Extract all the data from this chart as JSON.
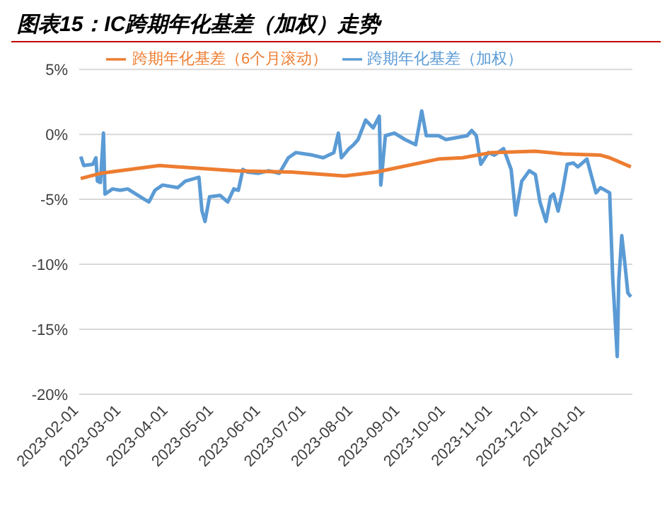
{
  "chart_data": {
    "type": "line",
    "title": "图表15：IC跨期年化基差（加权）走势",
    "xlim": [
      "2023-02-01",
      "2024-02-01"
    ],
    "xticks": [
      {
        "value": "2023-02-01",
        "label": "2023-02-01"
      },
      {
        "value": "2023-03-01",
        "label": "2023-03-01"
      },
      {
        "value": "2023-04-01",
        "label": "2023-04-01"
      },
      {
        "value": "2023-05-01",
        "label": "2023-05-01"
      },
      {
        "value": "2023-06-01",
        "label": "2023-06-01"
      },
      {
        "value": "2023-07-01",
        "label": "2023-07-01"
      },
      {
        "value": "2023-08-01",
        "label": "2023-08-01"
      },
      {
        "value": "2023-09-01",
        "label": "2023-09-01"
      },
      {
        "value": "2023-10-01",
        "label": "2023-10-01"
      },
      {
        "value": "2023-11-01",
        "label": "2023-11-01"
      },
      {
        "value": "2023-12-01",
        "label": "2023-12-01"
      },
      {
        "value": "2024-01-01",
        "label": "2024-01-01"
      }
    ],
    "ylim": [
      -20,
      5
    ],
    "yticks": [
      {
        "value": -20,
        "label": "-20%"
      },
      {
        "value": -15,
        "label": "-15%"
      },
      {
        "value": -10,
        "label": "-10%"
      },
      {
        "value": -5,
        "label": "-5%"
      },
      {
        "value": 0,
        "label": "0%"
      },
      {
        "value": 5,
        "label": "5%"
      }
    ],
    "grid": "y",
    "legend": "top",
    "marker": "none",
    "line_style": "solid",
    "series": [
      {
        "name": "跨期年化基差（加权）",
        "color": "#5b9bd5",
        "x": [
          "2023-02-02",
          "2023-02-04",
          "2023-02-10",
          "2023-02-12",
          "2023-02-13",
          "2023-02-15",
          "2023-02-17",
          "2023-02-18",
          "2023-02-23",
          "2023-02-28",
          "2023-03-05",
          "2023-03-16",
          "2023-03-19",
          "2023-03-23",
          "2023-03-28",
          "2023-04-07",
          "2023-04-12",
          "2023-04-21",
          "2023-04-23",
          "2023-04-25",
          "2023-04-28",
          "2023-05-05",
          "2023-05-10",
          "2023-05-14",
          "2023-05-17",
          "2023-05-20",
          "2023-05-23",
          "2023-05-30",
          "2023-06-06",
          "2023-06-13",
          "2023-06-19",
          "2023-06-24",
          "2023-07-05",
          "2023-07-12",
          "2023-07-19",
          "2023-07-22",
          "2023-07-24",
          "2023-07-29",
          "2023-08-01",
          "2023-08-04",
          "2023-08-09",
          "2023-08-14",
          "2023-08-18",
          "2023-08-19",
          "2023-08-22",
          "2023-08-28",
          "2023-09-04",
          "2023-09-11",
          "2023-09-15",
          "2023-09-18",
          "2023-09-26",
          "2023-10-01",
          "2023-10-15",
          "2023-10-18",
          "2023-10-21",
          "2023-10-24",
          "2023-10-29",
          "2023-11-02",
          "2023-11-08",
          "2023-11-13",
          "2023-11-16",
          "2023-11-20",
          "2023-11-25",
          "2023-11-29",
          "2023-12-02",
          "2023-12-06",
          "2023-12-09",
          "2023-12-11",
          "2023-12-14",
          "2023-12-17",
          "2023-12-20",
          "2023-12-24",
          "2023-12-27",
          "2024-01-02",
          "2024-01-08",
          "2024-01-11",
          "2024-01-17",
          "2024-01-19",
          "2024-01-22",
          "2024-01-23",
          "2024-01-25",
          "2024-01-27",
          "2024-01-29",
          "2024-01-31"
        ],
        "values": [
          -1.7,
          -2.4,
          -2.3,
          -1.8,
          -3.6,
          -3.7,
          0.1,
          -4.6,
          -4.2,
          -4.3,
          -4.2,
          -5.0,
          -5.2,
          -4.3,
          -3.9,
          -4.1,
          -3.6,
          -3.3,
          -5.9,
          -6.7,
          -4.8,
          -4.7,
          -5.2,
          -4.2,
          -4.3,
          -2.7,
          -2.9,
          -3.0,
          -2.8,
          -3.0,
          -1.8,
          -1.4,
          -1.6,
          -1.8,
          -1.4,
          0.1,
          -1.8,
          -1.1,
          -0.8,
          -0.4,
          1.1,
          0.5,
          1.4,
          -3.9,
          -0.1,
          0.1,
          -0.4,
          -0.8,
          1.8,
          -0.1,
          -0.1,
          -0.4,
          -0.1,
          0.3,
          -0.1,
          -2.3,
          -1.4,
          -1.6,
          -1.1,
          -2.7,
          -6.2,
          -3.6,
          -2.8,
          -3.1,
          -5.2,
          -6.7,
          -4.8,
          -4.6,
          -5.9,
          -4.3,
          -2.3,
          -2.2,
          -2.5,
          -1.9,
          -4.5,
          -4.1,
          -4.5,
          -11.0,
          -17.1,
          -11.3,
          -7.8,
          -9.9,
          -12.2,
          -12.5
        ]
      },
      {
        "name": "跨期年化基差（6个月滚动）",
        "color": "#ed7d31",
        "x": [
          "2023-02-02",
          "2023-02-15",
          "2023-03-26",
          "2023-05-15",
          "2023-06-21",
          "2023-07-26",
          "2023-08-16",
          "2023-09-26",
          "2023-10-12",
          "2023-10-31",
          "2023-11-29",
          "2023-12-17",
          "2024-01-11",
          "2024-01-17",
          "2024-01-31"
        ],
        "values": [
          -3.4,
          -3.0,
          -2.4,
          -2.8,
          -2.9,
          -3.2,
          -2.9,
          -1.9,
          -1.8,
          -1.4,
          -1.3,
          -1.5,
          -1.6,
          -1.8,
          -2.5
        ]
      }
    ]
  }
}
